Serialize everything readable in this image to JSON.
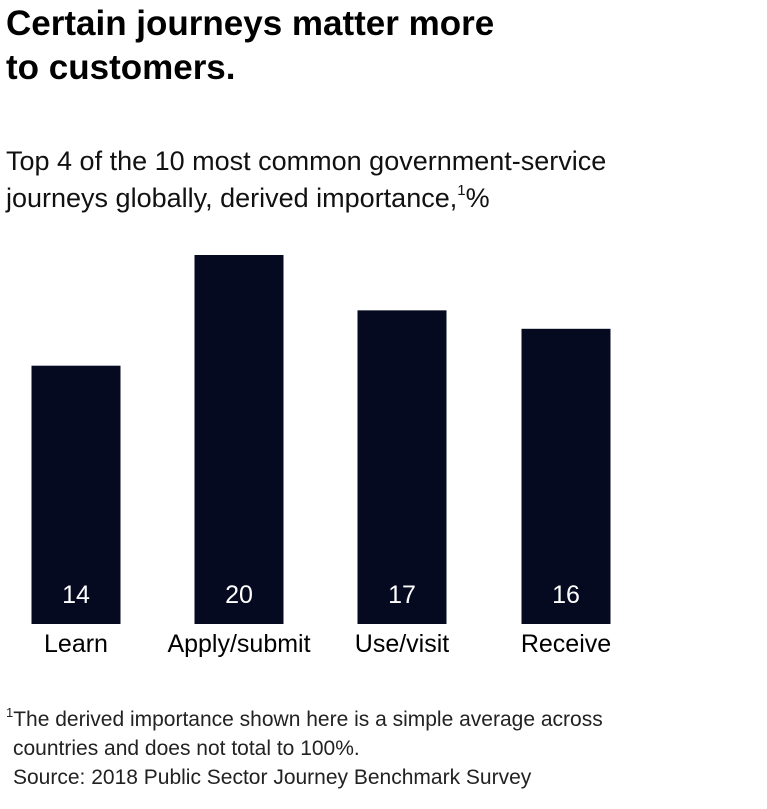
{
  "title_lines": [
    "Certain journeys matter more",
    "to customers."
  ],
  "subtitle": {
    "line1": "Top 4 of the 10 most common government-service",
    "line2": "journeys globally, derived importance,",
    "line2_sup": "1",
    "line2_end": "%"
  },
  "chart_data": {
    "type": "bar",
    "categories": [
      "Learn",
      "Apply/submit",
      "Use/visit",
      "Receive"
    ],
    "values": [
      14,
      20,
      17,
      16
    ],
    "xlabel": "",
    "ylabel": "",
    "ylim": [
      0,
      20
    ],
    "grid": false,
    "legend": "none",
    "bar_color": "#050a20",
    "label_color": "#ffffff"
  },
  "footnote": {
    "marker": "1",
    "line1": "The derived importance shown here is a simple average across",
    "line2": "countries and does not total to 100%.",
    "source": "Source: 2018 Public Sector Journey Benchmark Survey"
  }
}
